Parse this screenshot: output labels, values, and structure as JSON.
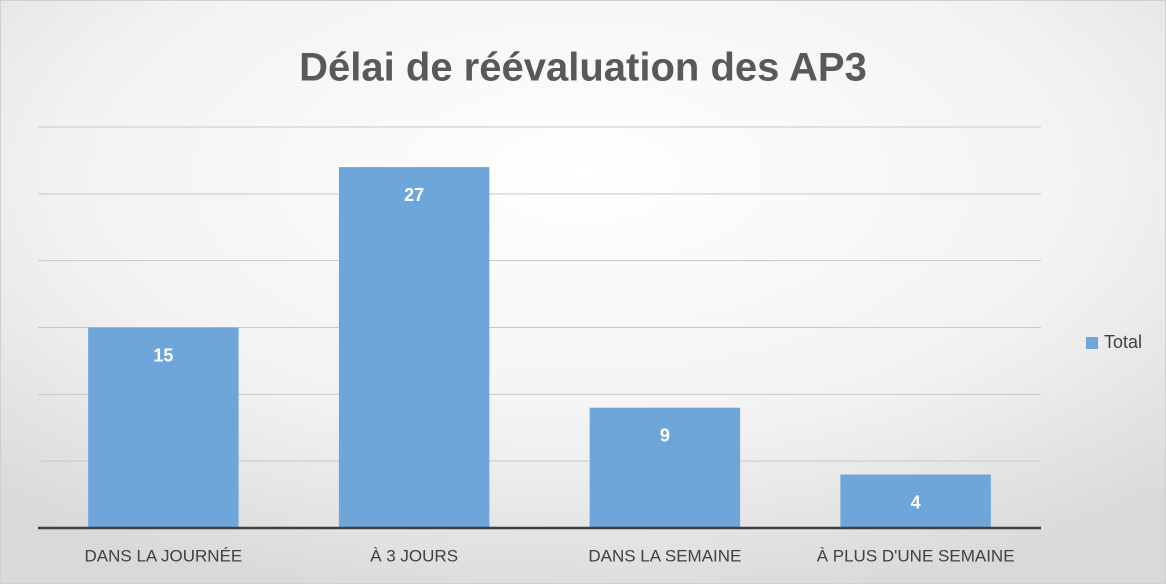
{
  "chart_data": {
    "type": "bar",
    "title": "Délai de réévaluation des AP3",
    "categories": [
      "DANS LA JOURNÉE",
      "À 3 JOURS",
      "DANS LA SEMAINE",
      "À PLUS D'UNE SEMAINE"
    ],
    "series": [
      {
        "name": "Total",
        "color": "#6fa6da",
        "values": [
          15,
          27,
          9,
          4
        ]
      }
    ],
    "ylim": [
      0,
      30
    ],
    "yticks": [
      0,
      5,
      10,
      15,
      20,
      25,
      30
    ],
    "grid": true,
    "legend": "right"
  }
}
